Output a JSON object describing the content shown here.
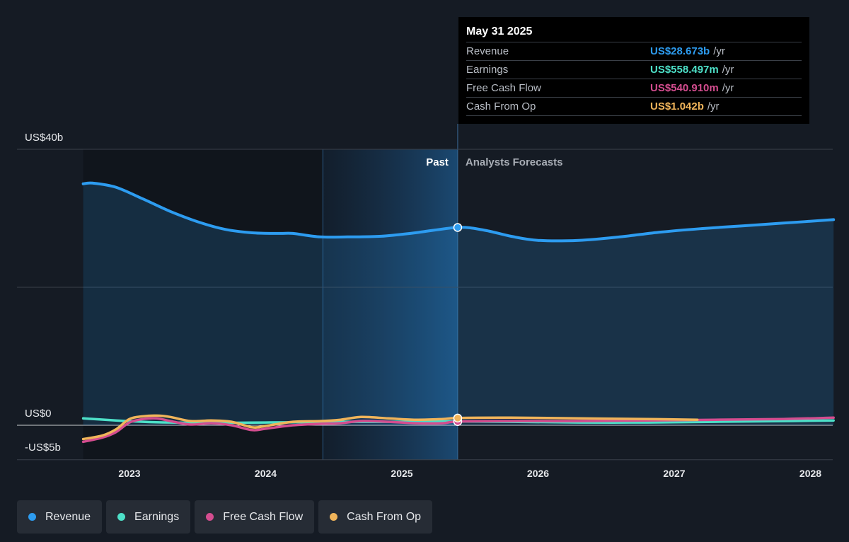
{
  "chart_data": {
    "type": "line",
    "y_axis": {
      "min": -5,
      "max": 40,
      "unit": "US$ billions",
      "labels": [
        {
          "value": 40,
          "text": "US$40b"
        },
        {
          "value": 0,
          "text": "US$0"
        },
        {
          "value": -5,
          "text": "-US$5b"
        }
      ],
      "gridlines": [
        40,
        20,
        0,
        -5
      ]
    },
    "x_axis": {
      "ticks": [
        "2023",
        "2024",
        "2025",
        "2026",
        "2027",
        "2028"
      ],
      "tick_values": [
        2023,
        2024,
        2025,
        2026,
        2027,
        2028
      ],
      "min": 2022.42,
      "max": 2028.17
    },
    "regions": {
      "highlight_start": 2024.42,
      "divider": 2025.41,
      "past_label": "Past",
      "forecast_label": "Analysts Forecasts"
    },
    "series": [
      {
        "name": "Revenue",
        "color": "#2d9cf0",
        "area": true,
        "points": [
          [
            2022.66,
            35
          ],
          [
            2022.73,
            35.1
          ],
          [
            2022.9,
            34.5
          ],
          [
            2023.1,
            32.8
          ],
          [
            2023.3,
            31.0
          ],
          [
            2023.5,
            29.5
          ],
          [
            2023.7,
            28.4
          ],
          [
            2023.9,
            27.9
          ],
          [
            2024.1,
            27.8
          ],
          [
            2024.2,
            27.8
          ],
          [
            2024.4,
            27.3
          ],
          [
            2024.6,
            27.3
          ],
          [
            2024.85,
            27.4
          ],
          [
            2025.1,
            27.9
          ],
          [
            2025.41,
            28.673
          ],
          [
            2025.6,
            28.3
          ],
          [
            2025.8,
            27.4
          ],
          [
            2026.0,
            26.8
          ],
          [
            2026.3,
            26.8
          ],
          [
            2026.6,
            27.3
          ],
          [
            2026.9,
            28.0
          ],
          [
            2027.2,
            28.5
          ],
          [
            2027.5,
            28.9
          ],
          [
            2027.8,
            29.3
          ],
          [
            2028.17,
            29.8
          ]
        ]
      },
      {
        "name": "Earnings",
        "color": "#4de0c8",
        "points": [
          [
            2022.66,
            1.0
          ],
          [
            2022.9,
            0.7
          ],
          [
            2023.1,
            0.5
          ],
          [
            2023.3,
            0.4
          ],
          [
            2023.5,
            0.35
          ],
          [
            2023.7,
            0.35
          ],
          [
            2024.0,
            0.4
          ],
          [
            2024.3,
            0.45
          ],
          [
            2024.6,
            0.5
          ],
          [
            2025.0,
            0.5
          ],
          [
            2025.41,
            0.558
          ],
          [
            2025.8,
            0.5
          ],
          [
            2026.3,
            0.4
          ],
          [
            2026.8,
            0.4
          ],
          [
            2027.3,
            0.5
          ],
          [
            2027.8,
            0.6
          ],
          [
            2028.17,
            0.7
          ]
        ]
      },
      {
        "name": "Free Cash Flow",
        "color": "#d44d8f",
        "points": [
          [
            2022.66,
            -2.4
          ],
          [
            2022.8,
            -1.8
          ],
          [
            2022.9,
            -1.0
          ],
          [
            2023.0,
            0.4
          ],
          [
            2023.1,
            0.9
          ],
          [
            2023.2,
            1.0
          ],
          [
            2023.3,
            0.6
          ],
          [
            2023.45,
            0.1
          ],
          [
            2023.6,
            0.3
          ],
          [
            2023.75,
            0.0
          ],
          [
            2023.9,
            -0.7
          ],
          [
            2024.0,
            -0.5
          ],
          [
            2024.2,
            0.0
          ],
          [
            2024.4,
            0.2
          ],
          [
            2024.55,
            0.3
          ],
          [
            2024.7,
            0.6
          ],
          [
            2024.9,
            0.5
          ],
          [
            2025.1,
            0.3
          ],
          [
            2025.3,
            0.3
          ],
          [
            2025.41,
            0.541
          ],
          [
            2025.8,
            0.6
          ],
          [
            2026.3,
            0.6
          ],
          [
            2026.8,
            0.7
          ],
          [
            2027.3,
            0.8
          ],
          [
            2027.8,
            0.9
          ],
          [
            2028.17,
            1.1
          ]
        ]
      },
      {
        "name": "Cash From Op",
        "color": "#f0b45a",
        "points": [
          [
            2022.66,
            -2.0
          ],
          [
            2022.8,
            -1.5
          ],
          [
            2022.9,
            -0.6
          ],
          [
            2023.0,
            0.9
          ],
          [
            2023.1,
            1.3
          ],
          [
            2023.2,
            1.4
          ],
          [
            2023.3,
            1.2
          ],
          [
            2023.45,
            0.6
          ],
          [
            2023.6,
            0.7
          ],
          [
            2023.75,
            0.5
          ],
          [
            2023.9,
            -0.3
          ],
          [
            2024.0,
            -0.1
          ],
          [
            2024.2,
            0.5
          ],
          [
            2024.4,
            0.6
          ],
          [
            2024.55,
            0.8
          ],
          [
            2024.7,
            1.2
          ],
          [
            2024.9,
            1.0
          ],
          [
            2025.1,
            0.8
          ],
          [
            2025.3,
            0.9
          ],
          [
            2025.41,
            1.042
          ],
          [
            2025.8,
            1.1
          ],
          [
            2026.3,
            1.0
          ],
          [
            2026.8,
            0.9
          ],
          [
            2027.17,
            0.8
          ]
        ]
      }
    ],
    "tooltip": {
      "date": "May 31 2025",
      "rows": [
        {
          "name": "Revenue",
          "value": "US$28.673b",
          "unit": "/yr",
          "color": "#2d9cf0"
        },
        {
          "name": "Earnings",
          "value": "US$558.497m",
          "unit": "/yr",
          "color": "#4de0c8"
        },
        {
          "name": "Free Cash Flow",
          "value": "US$540.910m",
          "unit": "/yr",
          "color": "#d44d8f"
        },
        {
          "name": "Cash From Op",
          "value": "US$1.042b",
          "unit": "/yr",
          "color": "#f0b45a"
        }
      ]
    },
    "legend": [
      {
        "name": "Revenue",
        "color": "#2d9cf0"
      },
      {
        "name": "Earnings",
        "color": "#4de0c8"
      },
      {
        "name": "Free Cash Flow",
        "color": "#d44d8f"
      },
      {
        "name": "Cash From Op",
        "color": "#f0b45a"
      }
    ]
  }
}
